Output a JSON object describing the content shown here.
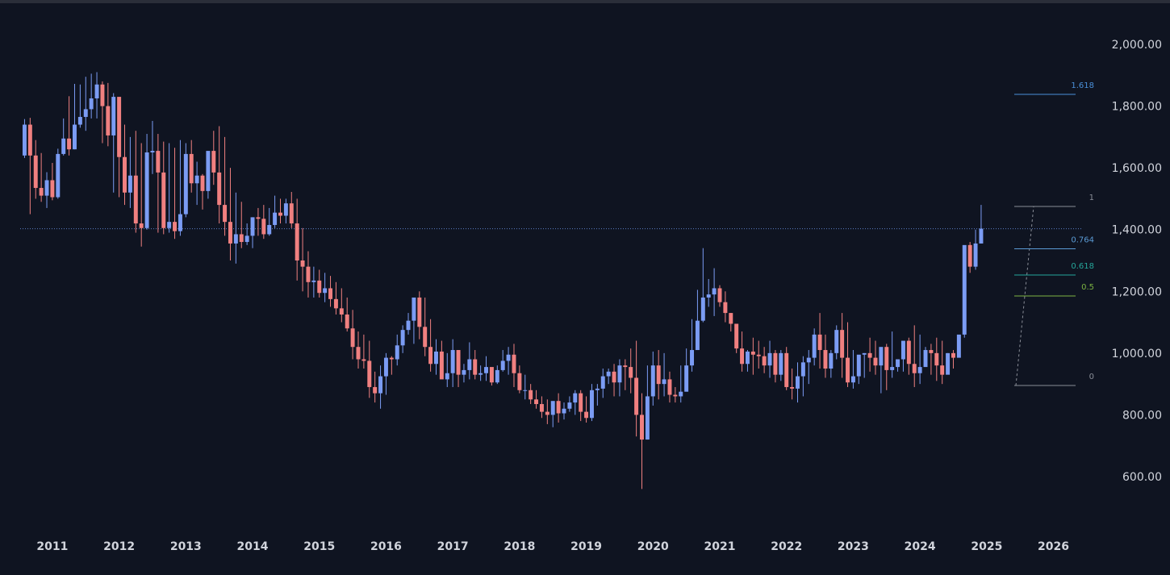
{
  "chart_data": {
    "type": "candlestick",
    "title": "",
    "xlabel": "",
    "ylabel": "",
    "interval": "monthly",
    "xlim": [
      "2010-06",
      "2026-06"
    ],
    "ylim": [
      480,
      2100
    ],
    "y_ticks": [
      "2,000.00",
      "1,800.00",
      "1,600.00",
      "1,400.00",
      "1,200.00",
      "1,000.00",
      "800.00",
      "600.00"
    ],
    "x_ticks": [
      "2011",
      "2012",
      "2013",
      "2014",
      "2015",
      "2016",
      "2017",
      "2018",
      "2019",
      "2020",
      "2021",
      "2022",
      "2023",
      "2024",
      "2025",
      "2026"
    ],
    "colors": {
      "up": "#7b9cf4",
      "down": "#f08080",
      "background": "#0f1421",
      "price_line": "#5b7ec5"
    },
    "current_price": 1403,
    "fibonacci": {
      "low": 895,
      "high": 1475,
      "levels": [
        {
          "label": "1.618",
          "value": 1838,
          "color": "#4a90d9"
        },
        {
          "label": "1",
          "value": 1475,
          "color": "#8a8e98"
        },
        {
          "label": "0.764",
          "value": 1338,
          "color": "#5b9bd5"
        },
        {
          "label": "0.618",
          "value": 1253,
          "color": "#26a69a"
        },
        {
          "label": "0.5",
          "value": 1185,
          "color": "#7cb342"
        },
        {
          "label": "0",
          "value": 895,
          "color": "#8a8e98"
        }
      ]
    },
    "series": [
      {
        "start": "2010-08",
        "closes": [
          1740,
          1640,
          1535,
          1510,
          1560,
          1505,
          1645,
          1695,
          1660,
          1740,
          1765,
          1790,
          1825,
          1870,
          1800,
          1705,
          1830,
          1635,
          1520,
          1575,
          1420,
          1405,
          1650,
          1655,
          1585,
          1405,
          1425,
          1395,
          1450,
          1645,
          1550,
          1575,
          1525,
          1655,
          1585,
          1480,
          1425,
          1355,
          1385,
          1360,
          1380,
          1440,
          1435,
          1385,
          1415,
          1455,
          1445,
          1485,
          1420,
          1300,
          1280,
          1230,
          1235,
          1195,
          1210,
          1175,
          1145,
          1125,
          1080,
          1020,
          980,
          975,
          890,
          870,
          925,
          985,
          980,
          1025,
          1075,
          1105,
          1180,
          1085,
          1020,
          965,
          1005,
          915,
          935,
          1010,
          930,
          945,
          980,
          930,
          935,
          955,
          905,
          945,
          975,
          995,
          935,
          880,
          880,
          850,
          835,
          810,
          800,
          845,
          805,
          820,
          840,
          870,
          810,
          790,
          880,
          885,
          925,
          940,
          905,
          960,
          955,
          920,
          800,
          720,
          860,
          960,
          900,
          915,
          865,
          860,
          875,
          960,
          1010,
          1105,
          1180,
          1190,
          1210,
          1165,
          1130,
          1095,
          1015,
          965,
          1005,
          995,
          990,
          960,
          1000,
          930,
          1000,
          890,
          885,
          925,
          970,
          985,
          1060,
          1010,
          950,
          1000,
          1075,
          985,
          905,
          925,
          995,
          1000,
          985,
          960,
          1020,
          945,
          955,
          980,
          1040,
          965,
          935,
          955,
          1010,
          1000,
          960,
          930,
          1000,
          985,
          1060,
          1350,
          1280,
          1355,
          1403
        ],
        "highs": [
          1758,
          1762,
          1690,
          1648,
          1586,
          1616,
          1662,
          1760,
          1832,
          1872,
          1870,
          1895,
          1905,
          1910,
          1880,
          1875,
          1842,
          1710,
          1740,
          1700,
          1720,
          1680,
          1710,
          1752,
          1710,
          1685,
          1680,
          1665,
          1690,
          1680,
          1690,
          1620,
          1580,
          1650,
          1720,
          1735,
          1700,
          1600,
          1520,
          1490,
          1420,
          1440,
          1470,
          1480,
          1470,
          1510,
          1500,
          1500,
          1522,
          1500,
          1405,
          1330,
          1280,
          1270,
          1260,
          1250,
          1230,
          1210,
          1180,
          1140,
          1070,
          1060,
          1040,
          940,
          960,
          1000,
          990,
          1060,
          1090,
          1130,
          1170,
          1200,
          1180,
          1110,
          1045,
          1040,
          1000,
          1045,
          1010,
          965,
          1035,
          1010,
          960,
          990,
          950,
          960,
          1010,
          1020,
          1030,
          960,
          930,
          900,
          880,
          860,
          850,
          830,
          870,
          840,
          860,
          880,
          880,
          860,
          900,
          900,
          950,
          950,
          965,
          980,
          980,
          1015,
          1040,
          870,
          960,
          1005,
          1010,
          1000,
          940,
          890,
          960,
          1015,
          1110,
          1205,
          1340,
          1240,
          1275,
          1220,
          1200,
          1130,
          1090,
          1070,
          1010,
          1050,
          1040,
          1020,
          1040,
          1010,
          1010,
          1020,
          950,
          970,
          990,
          1010,
          1080,
          1130,
          1060,
          1010,
          1090,
          1130,
          1100,
          1010,
          960,
          1000,
          1050,
          1040,
          1000,
          1030,
          1070,
          980,
          990,
          1050,
          1090,
          1060,
          1020,
          1030,
          1050,
          1040,
          1000,
          1010,
          1040,
          1090,
          1360,
          1400,
          1480,
          1415
        ],
        "lows": [
          1632,
          1450,
          1500,
          1490,
          1470,
          1495,
          1500,
          1640,
          1640,
          1660,
          1730,
          1720,
          1760,
          1760,
          1680,
          1670,
          1520,
          1505,
          1480,
          1470,
          1390,
          1345,
          1400,
          1580,
          1390,
          1385,
          1390,
          1370,
          1380,
          1440,
          1520,
          1480,
          1465,
          1500,
          1545,
          1420,
          1380,
          1300,
          1290,
          1340,
          1350,
          1340,
          1380,
          1370,
          1380,
          1405,
          1420,
          1420,
          1405,
          1235,
          1200,
          1180,
          1180,
          1180,
          1165,
          1150,
          1125,
          1100,
          1070,
          980,
          950,
          950,
          855,
          840,
          820,
          865,
          930,
          960,
          1000,
          1060,
          1030,
          1045,
          990,
          940,
          930,
          920,
          890,
          890,
          890,
          905,
          915,
          915,
          910,
          910,
          895,
          900,
          940,
          930,
          890,
          870,
          850,
          835,
          820,
          790,
          770,
          760,
          775,
          785,
          810,
          800,
          780,
          775,
          780,
          830,
          855,
          900,
          860,
          860,
          880,
          870,
          730,
          560,
          720,
          830,
          850,
          860,
          840,
          840,
          840,
          880,
          940,
          1020,
          1100,
          1150,
          1120,
          1150,
          1100,
          1070,
          1000,
          940,
          940,
          930,
          950,
          935,
          920,
          905,
          910,
          880,
          850,
          840,
          860,
          900,
          960,
          950,
          920,
          920,
          980,
          920,
          890,
          885,
          900,
          920,
          940,
          930,
          870,
          880,
          920,
          940,
          940,
          930,
          890,
          900,
          980,
          930,
          910,
          900,
          940,
          950,
          1020,
          1050,
          1260,
          1270,
          1355
        ],
        "opens": [
          1640,
          1740,
          1640,
          1535,
          1510,
          1560,
          1505,
          1645,
          1695,
          1660,
          1740,
          1765,
          1790,
          1825,
          1870,
          1800,
          1705,
          1830,
          1635,
          1520,
          1575,
          1420,
          1405,
          1650,
          1655,
          1585,
          1405,
          1425,
          1395,
          1450,
          1645,
          1550,
          1575,
          1525,
          1655,
          1585,
          1480,
          1425,
          1355,
          1385,
          1360,
          1380,
          1440,
          1435,
          1385,
          1415,
          1455,
          1445,
          1485,
          1420,
          1300,
          1280,
          1230,
          1235,
          1195,
          1210,
          1175,
          1145,
          1125,
          1080,
          1020,
          980,
          975,
          890,
          870,
          925,
          985,
          980,
          1025,
          1075,
          1105,
          1180,
          1085,
          1020,
          965,
          1005,
          915,
          935,
          1010,
          930,
          945,
          980,
          930,
          935,
          955,
          905,
          945,
          975,
          995,
          935,
          880,
          880,
          850,
          835,
          810,
          800,
          845,
          805,
          820,
          840,
          870,
          810,
          790,
          880,
          885,
          925,
          940,
          905,
          960,
          955,
          920,
          800,
          720,
          860,
          960,
          900,
          915,
          865,
          860,
          875,
          960,
          1010,
          1105,
          1180,
          1190,
          1210,
          1165,
          1130,
          1095,
          1015,
          965,
          1005,
          995,
          990,
          960,
          1000,
          930,
          1000,
          890,
          885,
          925,
          970,
          985,
          1060,
          1010,
          950,
          1000,
          1075,
          985,
          905,
          925,
          995,
          1000,
          985,
          960,
          1020,
          945,
          955,
          980,
          1040,
          965,
          935,
          955,
          1010,
          1000,
          960,
          930,
          1000,
          985,
          1060,
          1350,
          1280,
          1355
        ]
      }
    ]
  }
}
